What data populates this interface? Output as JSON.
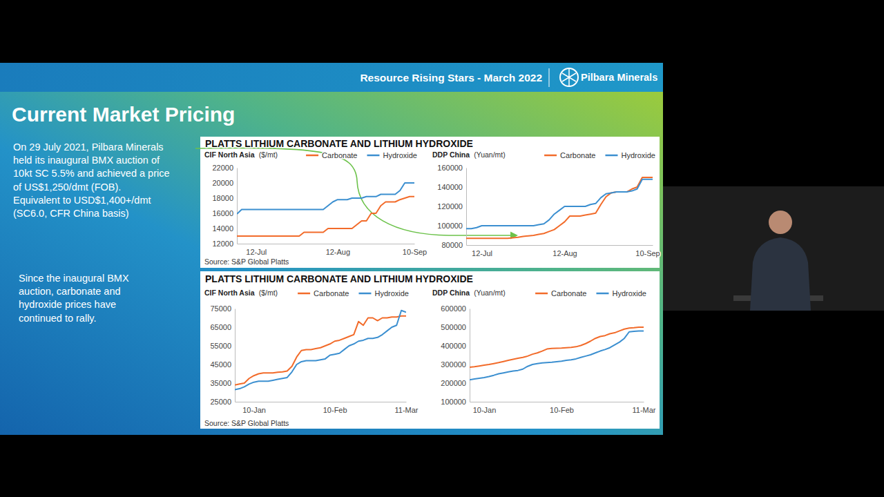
{
  "slide": {
    "header": "Resource Rising Stars - March 2022",
    "logo": "Pilbara Minerals",
    "title": "Current Market Pricing",
    "paragraphs": [
      [
        "On 29 July 2021, Pilbara Minerals",
        "held its inaugural BMX auction of",
        "10kt SC 5.5% and achieved a price",
        "of US$1,250/dmt (FOB).",
        "Equivalent to USD$1,400+/dmt",
        "(SC6.0, CFR China basis)"
      ],
      [
        "Since the inaugural BMX",
        "auction, carbonate and",
        "hydroxide prices have",
        "continued to rally."
      ]
    ],
    "panels": [
      {
        "title": "PLATTS LITHIUM CARBONATE AND LITHIUM HYDROXIDE",
        "source": "Source: S&P Global Platts"
      },
      {
        "title": "PLATTS LITHIUM CARBONATE AND LITHIUM HYDROXIDE",
        "source": "Source: S&P Global Platts"
      }
    ]
  },
  "chart_data": [
    {
      "type": "line",
      "title": "CIF North Asia",
      "ylabel": "($/mt)",
      "categories": [
        null,
        null,
        null,
        null,
        "12-Jul",
        null,
        null,
        null,
        null,
        null,
        null,
        null,
        null,
        null,
        null,
        null,
        null,
        null,
        null,
        null,
        null,
        "12-Aug",
        null,
        null,
        null,
        null,
        null,
        null,
        null,
        null,
        null,
        null,
        null,
        null,
        null,
        null,
        null,
        "10-Sep"
      ],
      "series": [
        {
          "name": "Carbonate",
          "color": "#f26b2a",
          "values": [
            13000,
            13000,
            13000,
            13000,
            13000,
            13000,
            13000,
            13000,
            13000,
            13000,
            13000,
            13000,
            13000,
            13000,
            13500,
            13500,
            13500,
            13500,
            13500,
            14000,
            14000,
            14000,
            14000,
            14000,
            14000,
            14500,
            15000,
            15000,
            16000,
            16000,
            17000,
            17500,
            17500,
            17500,
            17800,
            18000,
            18200,
            18200
          ]
        },
        {
          "name": "Hydroxide",
          "color": "#3b8fd0",
          "values": [
            15900,
            16500,
            16500,
            16500,
            16500,
            16500,
            16500,
            16500,
            16500,
            16500,
            16500,
            16500,
            16500,
            16500,
            16500,
            16500,
            16500,
            16500,
            16500,
            17000,
            17500,
            17800,
            17800,
            17800,
            18000,
            18000,
            18000,
            18200,
            18200,
            18200,
            18500,
            18500,
            18500,
            18500,
            19000,
            20000,
            20000,
            20000
          ]
        }
      ],
      "ylim": [
        12000,
        22000
      ],
      "yticks": [
        12000,
        14000,
        16000,
        18000,
        20000,
        22000
      ],
      "grid": false,
      "legend": "top-right"
    },
    {
      "type": "line",
      "title": "DDP China",
      "ylabel": "(Yuan/mt)",
      "categories": [
        null,
        null,
        null,
        "12-Jul",
        null,
        null,
        null,
        null,
        null,
        null,
        null,
        null,
        null,
        null,
        null,
        null,
        null,
        null,
        null,
        "12-Aug",
        null,
        null,
        null,
        null,
        null,
        null,
        null,
        null,
        null,
        null,
        null,
        null,
        null,
        null,
        null,
        "10-Sep",
        null
      ],
      "series": [
        {
          "name": "Carbonate",
          "color": "#f26b2a",
          "values": [
            87000,
            87000,
            87000,
            87000,
            87000,
            87000,
            87000,
            87000,
            87000,
            87500,
            88000,
            89000,
            89500,
            90000,
            91000,
            92000,
            94000,
            96000,
            100000,
            104000,
            110000,
            110000,
            110000,
            111000,
            112000,
            113000,
            122000,
            130000,
            134000,
            135000,
            135000,
            135000,
            138000,
            140000,
            150000,
            150000,
            150000
          ]
        },
        {
          "name": "Hydroxide",
          "color": "#3b8fd0",
          "values": [
            97000,
            97000,
            98000,
            100000,
            100000,
            100000,
            100000,
            100000,
            100000,
            100000,
            100000,
            100000,
            100000,
            100000,
            101000,
            102000,
            106000,
            112000,
            116000,
            120000,
            120000,
            120000,
            120000,
            120000,
            122000,
            123000,
            129000,
            133000,
            134000,
            135000,
            135000,
            135000,
            136000,
            138000,
            148000,
            148000,
            148000
          ]
        }
      ],
      "ylim": [
        80000,
        160000
      ],
      "yticks": [
        80000,
        100000,
        120000,
        140000,
        160000
      ],
      "grid": false,
      "legend": "top-right"
    },
    {
      "type": "line",
      "title": "CIF North Asia",
      "ylabel": "($/mt)",
      "categories": [
        null,
        null,
        null,
        null,
        "10-Jan",
        null,
        null,
        null,
        null,
        null,
        null,
        null,
        null,
        null,
        null,
        null,
        null,
        null,
        null,
        null,
        null,
        "10-Feb",
        null,
        null,
        null,
        null,
        null,
        null,
        null,
        null,
        null,
        null,
        null,
        null,
        null,
        null,
        "11-Mar"
      ],
      "series": [
        {
          "name": "Carbonate",
          "color": "#f26b2a",
          "values": [
            34000,
            34500,
            35000,
            37500,
            39000,
            40000,
            40500,
            40500,
            40500,
            40800,
            41000,
            41500,
            44000,
            49000,
            52500,
            53000,
            53000,
            53500,
            54000,
            55000,
            56000,
            57500,
            58000,
            59000,
            60000,
            61000,
            68000,
            66000,
            70000,
            70000,
            68500,
            70000,
            70000,
            70500,
            70500,
            71000,
            71000
          ]
        },
        {
          "name": "Hydroxide",
          "color": "#3b8fd0",
          "values": [
            31500,
            32000,
            33000,
            34500,
            35500,
            36000,
            36000,
            36000,
            36500,
            37000,
            37500,
            38000,
            41000,
            45000,
            46500,
            47000,
            47000,
            47000,
            47500,
            48000,
            50000,
            50500,
            51000,
            53000,
            55000,
            56000,
            57500,
            58000,
            59000,
            59000,
            59500,
            61000,
            63000,
            65000,
            66000,
            74000,
            73000
          ]
        }
      ],
      "ylim": [
        25000,
        75000
      ],
      "yticks": [
        25000,
        35000,
        45000,
        55000,
        65000,
        75000
      ],
      "grid": false,
      "legend": "top-right"
    },
    {
      "type": "line",
      "title": "DDP China",
      "ylabel": "(Yuan/mt)",
      "categories": [
        null,
        null,
        null,
        "10-Jan",
        null,
        null,
        null,
        null,
        null,
        null,
        null,
        null,
        null,
        null,
        null,
        null,
        null,
        null,
        null,
        "10-Feb",
        null,
        null,
        null,
        null,
        null,
        null,
        null,
        null,
        null,
        null,
        null,
        null,
        null,
        null,
        null,
        null,
        "11-Mar"
      ],
      "series": [
        {
          "name": "Carbonate",
          "color": "#f26b2a",
          "values": [
            285000,
            288000,
            292000,
            296000,
            300000,
            305000,
            310000,
            316000,
            322000,
            328000,
            333000,
            338000,
            345000,
            355000,
            362000,
            372000,
            383000,
            386000,
            387000,
            388000,
            390000,
            392000,
            395000,
            402000,
            412000,
            425000,
            440000,
            450000,
            455000,
            465000,
            470000,
            480000,
            490000,
            495000,
            497000,
            500000,
            500000
          ]
        },
        {
          "name": "Hydroxide",
          "color": "#3b8fd0",
          "values": [
            218000,
            222000,
            226000,
            230000,
            235000,
            242000,
            250000,
            255000,
            260000,
            265000,
            268000,
            275000,
            290000,
            300000,
            305000,
            308000,
            310000,
            312000,
            315000,
            318000,
            322000,
            325000,
            330000,
            338000,
            345000,
            352000,
            362000,
            372000,
            380000,
            390000,
            405000,
            420000,
            440000,
            475000,
            478000,
            480000,
            480000
          ]
        }
      ],
      "ylim": [
        100000,
        600000
      ],
      "yticks": [
        100000,
        200000,
        300000,
        400000,
        500000,
        600000
      ],
      "grid": false,
      "legend": "top-right"
    }
  ]
}
